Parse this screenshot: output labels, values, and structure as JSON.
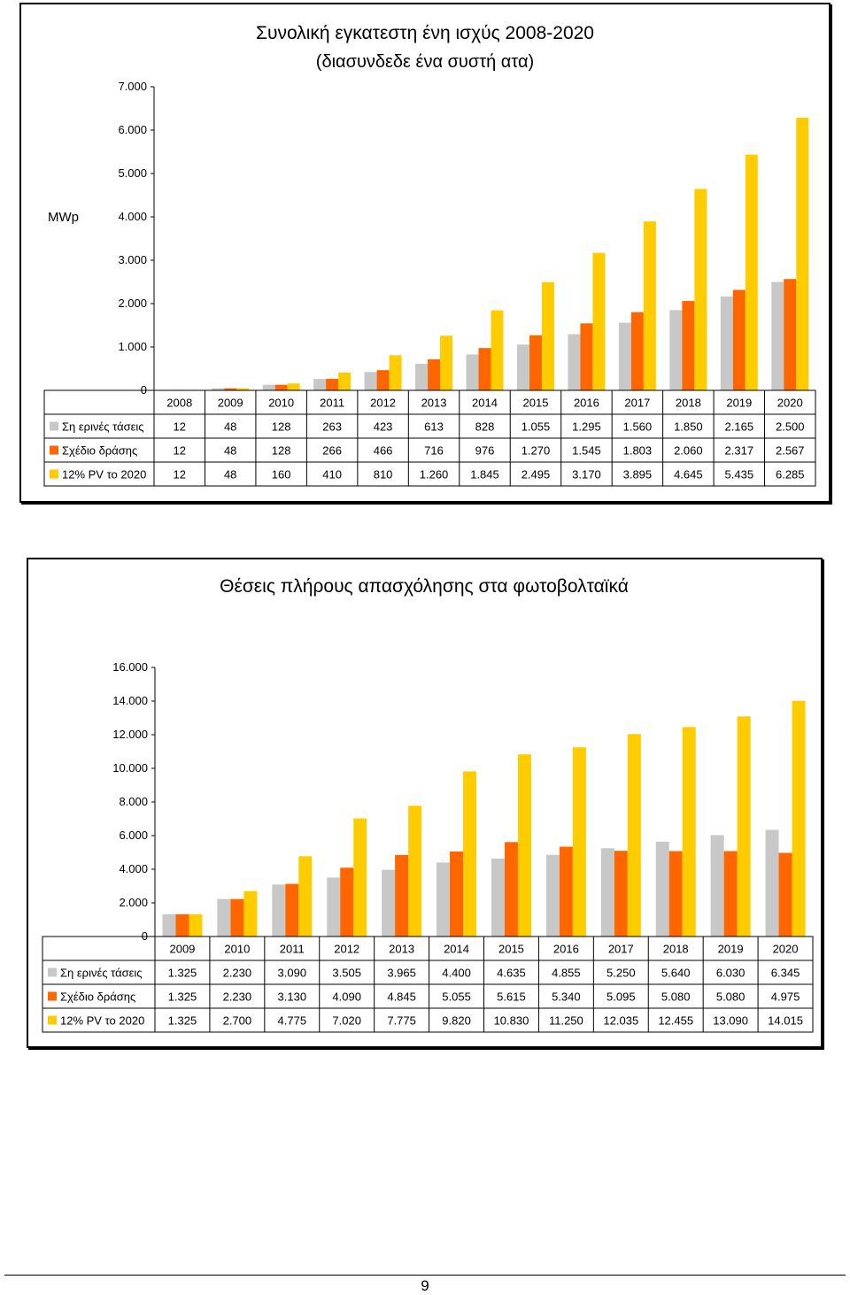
{
  "colors": {
    "current": "#c8c8c8",
    "plan": "#ff6600",
    "pv12": "#ffcc00"
  },
  "chart_data": [
    {
      "type": "bar",
      "title": "Συνολική εγκατεστη ένη ισχύς 2008-2020",
      "subtitle": "(διασυνδεδε ένα συστή ατα)",
      "ylabel": "MWp",
      "xlabel": "",
      "ylim": [
        0,
        7000
      ],
      "yticks": [
        "0",
        "1.000",
        "2.000",
        "3.000",
        "4.000",
        "5.000",
        "6.000",
        "7.000"
      ],
      "categories": [
        "2008",
        "2009",
        "2010",
        "2011",
        "2012",
        "2013",
        "2014",
        "2015",
        "2016",
        "2017",
        "2018",
        "2019",
        "2020"
      ],
      "series": [
        {
          "name": "Ση ερινές τάσεις",
          "values": [
            12,
            48,
            128,
            263,
            423,
            613,
            828,
            1055,
            1295,
            1560,
            1850,
            2165,
            2500
          ],
          "labels": [
            "12",
            "48",
            "128",
            "263",
            "423",
            "613",
            "828",
            "1.055",
            "1.295",
            "1.560",
            "1.850",
            "2.165",
            "2.500"
          ]
        },
        {
          "name": "Σχέδιο δράσης",
          "values": [
            12,
            48,
            128,
            266,
            466,
            716,
            976,
            1270,
            1545,
            1803,
            2060,
            2317,
            2567
          ],
          "labels": [
            "12",
            "48",
            "128",
            "266",
            "466",
            "716",
            "976",
            "1.270",
            "1.545",
            "1.803",
            "2.060",
            "2.317",
            "2.567"
          ]
        },
        {
          "name": "12% PV το 2020",
          "values": [
            12,
            48,
            160,
            410,
            810,
            1260,
            1845,
            2495,
            3170,
            3895,
            4645,
            5435,
            6285
          ],
          "labels": [
            "12",
            "48",
            "160",
            "410",
            "810",
            "1.260",
            "1.845",
            "2.495",
            "3.170",
            "3.895",
            "4.645",
            "5.435",
            "6.285"
          ]
        }
      ],
      "grid": false,
      "legend": "table-left"
    },
    {
      "type": "bar",
      "title": "Θέσεις πλήρους απασχόλησης στα φωτοβολταϊκά",
      "ylabel": "",
      "xlabel": "",
      "ylim": [
        0,
        16000
      ],
      "yticks": [
        "0",
        "2.000",
        "4.000",
        "6.000",
        "8.000",
        "10.000",
        "12.000",
        "14.000",
        "16.000"
      ],
      "categories": [
        "2009",
        "2010",
        "2011",
        "2012",
        "2013",
        "2014",
        "2015",
        "2016",
        "2017",
        "2018",
        "2019",
        "2020"
      ],
      "series": [
        {
          "name": "Ση ερινές τάσεις",
          "values": [
            1325,
            2230,
            3090,
            3505,
            3965,
            4400,
            4635,
            4855,
            5250,
            5640,
            6030,
            6345
          ],
          "labels": [
            "1.325",
            "2.230",
            "3.090",
            "3.505",
            "3.965",
            "4.400",
            "4.635",
            "4.855",
            "5.250",
            "5.640",
            "6.030",
            "6.345"
          ]
        },
        {
          "name": "Σχέδιο δράσης",
          "values": [
            1325,
            2230,
            3130,
            4090,
            4845,
            5055,
            5615,
            5340,
            5095,
            5080,
            5080,
            4975
          ],
          "labels": [
            "1.325",
            "2.230",
            "3.130",
            "4.090",
            "4.845",
            "5.055",
            "5.615",
            "5.340",
            "5.095",
            "5.080",
            "5.080",
            "4.975"
          ]
        },
        {
          "name": "12% PV το 2020",
          "values": [
            1325,
            2700,
            4775,
            7020,
            7775,
            9820,
            10830,
            11250,
            12035,
            12455,
            13090,
            14015
          ],
          "labels": [
            "1.325",
            "2.700",
            "4.775",
            "7.020",
            "7.775",
            "9.820",
            "10.830",
            "11.250",
            "12.035",
            "12.455",
            "13.090",
            "14.015"
          ]
        }
      ],
      "grid": false,
      "legend": "table-left"
    }
  ],
  "page_number": "9"
}
